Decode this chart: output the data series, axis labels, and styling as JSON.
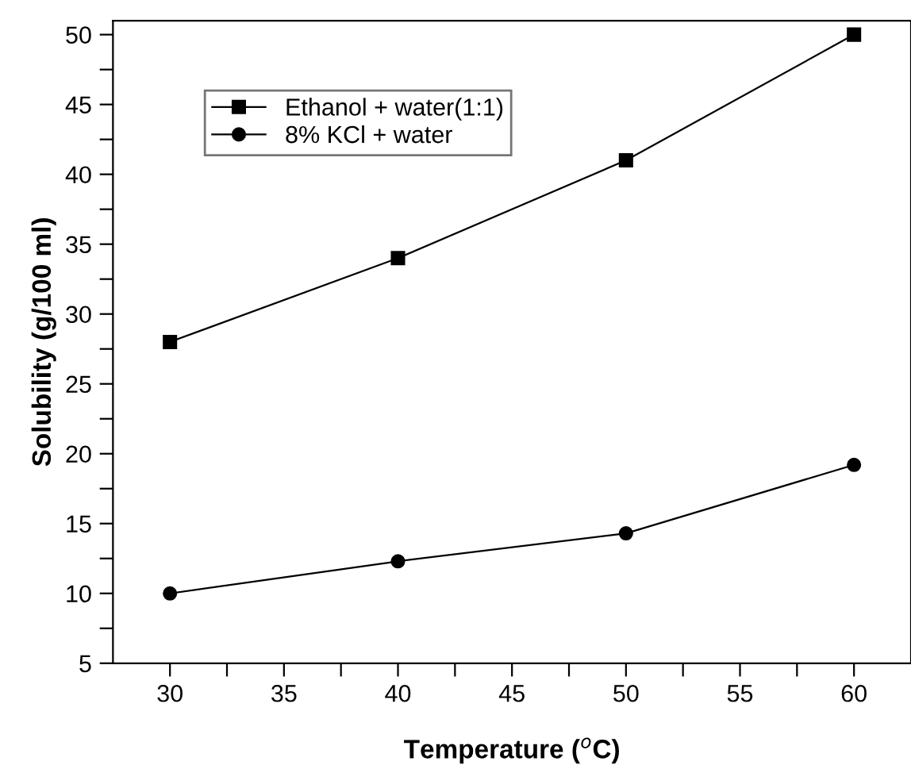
{
  "chart_data": {
    "type": "line",
    "xlabel": "Temperature ($^{o}$C)",
    "ylabel": "Solubility (g/100 ml)",
    "x": [
      30,
      40,
      50,
      60
    ],
    "series": [
      {
        "name": "Ethanol + water(1:1)",
        "color": "#000000",
        "marker": "square",
        "values": [
          28,
          34,
          41,
          50
        ]
      },
      {
        "name": "8% KCl + water",
        "color": "#000000",
        "marker": "circle",
        "values": [
          10,
          12.3,
          14.3,
          19.2
        ]
      }
    ],
    "xlim": [
      27.5,
      62.5
    ],
    "xticks": [
      30,
      {
        "value": 32.5,
        "label": null
      },
      35,
      {
        "value": 37.5,
        "label": null
      },
      40,
      {
        "value": 42.5,
        "label": null
      },
      45,
      {
        "value": 47.5,
        "label": null
      },
      50,
      {
        "value": 52.5,
        "label": null
      },
      55,
      {
        "value": 57.5,
        "label": null
      },
      60
    ],
    "ylim": [
      5,
      51
    ],
    "yticks": [
      5,
      {
        "value": 7.5,
        "label": null
      },
      10,
      {
        "value": 12.5,
        "label": null
      },
      15,
      {
        "value": 17.5,
        "label": null
      },
      20,
      {
        "value": 22.5,
        "label": null
      },
      25,
      {
        "value": 27.5,
        "label": null
      },
      30,
      {
        "value": 32.5,
        "label": null
      },
      35,
      {
        "value": 37.5,
        "label": null
      },
      40,
      {
        "value": 42.5,
        "label": null
      },
      45,
      {
        "value": 47.5,
        "label": null
      },
      50
    ],
    "grid": false,
    "legend": "top left",
    "line_style": "solid"
  }
}
